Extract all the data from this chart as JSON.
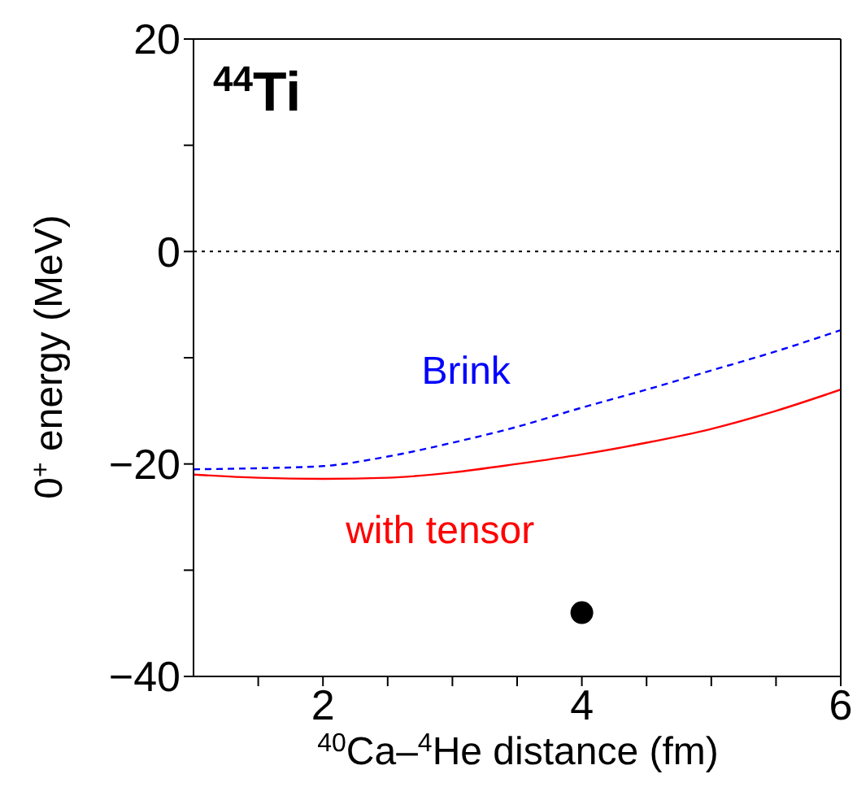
{
  "chart_data": {
    "type": "line",
    "title": "$^{44}$Ti",
    "xlabel": "$^{40}$Ca–$^{4}$He distance (fm)",
    "ylabel": "0$^{+}$ energy (MeV)",
    "xlim": [
      1,
      6
    ],
    "xticks": [
      {
        "value": 1.5,
        "label": null
      },
      2,
      {
        "value": 2.5,
        "label": null
      },
      {
        "value": 3,
        "label": null
      },
      {
        "value": 3.5,
        "label": null
      },
      4,
      {
        "value": 4.5,
        "label": null
      },
      {
        "value": 5,
        "label": null
      },
      {
        "value": 5.5,
        "label": null
      },
      6
    ],
    "ylim": [
      -40,
      20
    ],
    "yticks": [
      -40,
      {
        "value": -30,
        "label": null
      },
      -20,
      {
        "value": -10,
        "label": null
      },
      0,
      {
        "value": 10,
        "label": null
      },
      20
    ],
    "marker": "none",
    "ref_lines": [
      {
        "axis": "y",
        "value": 0,
        "color": "#000000",
        "line_style": "dotted"
      }
    ],
    "series": [
      {
        "name": "Brink",
        "color": "#0000ff",
        "line_style": "dashed",
        "x": [
          1,
          1.5,
          2,
          2.5,
          3,
          3.5,
          4,
          4.5,
          5,
          5.5,
          6
        ],
        "values": [
          -20.5,
          -20.4,
          -20.2,
          -19.3,
          -18,
          -16.5,
          -14.7,
          -13,
          -11.2,
          -9.4,
          -7.4
        ]
      },
      {
        "name": "with tensor",
        "color": "#ff0000",
        "line_style": "solid",
        "x": [
          1,
          1.5,
          2,
          2.5,
          3,
          3.5,
          4,
          4.5,
          5,
          5.5,
          6
        ],
        "values": [
          -21,
          -21.3,
          -21.4,
          -21.3,
          -20.8,
          -20,
          -19.1,
          -18,
          -16.7,
          -15,
          -13
        ]
      },
      {
        "type": "scatter",
        "color": "#000000",
        "marker": "circle",
        "x": [
          4
        ],
        "values": [
          -34
        ]
      }
    ]
  }
}
